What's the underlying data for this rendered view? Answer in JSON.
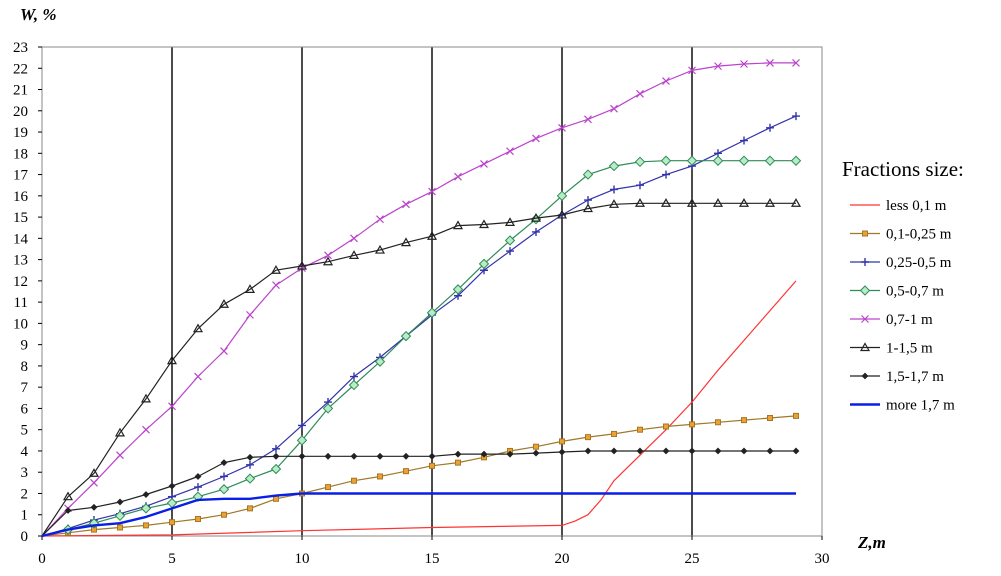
{
  "chart_data": {
    "type": "line",
    "title": "",
    "xlabel": "Z,m",
    "ylabel": "W, %",
    "xlim": [
      0,
      30
    ],
    "ylim": [
      0,
      23
    ],
    "x_ticks": [
      0,
      5,
      10,
      15,
      20,
      25,
      30
    ],
    "y_ticks": [
      0,
      1,
      2,
      3,
      4,
      5,
      6,
      7,
      8,
      9,
      10,
      11,
      12,
      13,
      14,
      15,
      16,
      17,
      18,
      19,
      20,
      21,
      22,
      23
    ],
    "grid": "vertical major lines",
    "legend_position": "right",
    "legend_title": "Fractions size:",
    "series": [
      {
        "name": "less 0,1 m",
        "color": "#ff3333",
        "marker": "none",
        "x": [
          0,
          5,
          10,
          15,
          20,
          20.5,
          21,
          21.5,
          22,
          23,
          24,
          25,
          26,
          27,
          28,
          29
        ],
        "y": [
          0,
          0.05,
          0.25,
          0.4,
          0.5,
          0.7,
          1.0,
          1.7,
          2.6,
          3.8,
          5.0,
          6.3,
          7.8,
          9.2,
          10.6,
          12.0
        ]
      },
      {
        "name": "0,1-0,25 m",
        "color": "#a07828",
        "marker": "square",
        "x": [
          0,
          1,
          2,
          3,
          4,
          5,
          6,
          7,
          8,
          9,
          10,
          11,
          12,
          13,
          14,
          15,
          16,
          17,
          18,
          19,
          20,
          21,
          22,
          23,
          24,
          25,
          26,
          27,
          28,
          29
        ],
        "y": [
          0,
          0.15,
          0.3,
          0.4,
          0.5,
          0.65,
          0.8,
          1.0,
          1.3,
          1.75,
          2.0,
          2.3,
          2.6,
          2.8,
          3.05,
          3.3,
          3.45,
          3.7,
          4.0,
          4.2,
          4.45,
          4.65,
          4.8,
          5.0,
          5.15,
          5.25,
          5.35,
          5.45,
          5.55,
          5.65
        ]
      },
      {
        "name": "0,25-0,5 m",
        "color": "#3333aa",
        "marker": "plus",
        "x": [
          0,
          1,
          2,
          3,
          4,
          5,
          6,
          7,
          8,
          9,
          10,
          11,
          12,
          13,
          14,
          15,
          16,
          17,
          18,
          19,
          20,
          21,
          22,
          23,
          24,
          25,
          26,
          27,
          28,
          29
        ],
        "y": [
          0,
          0.35,
          0.75,
          1.05,
          1.4,
          1.85,
          2.3,
          2.8,
          3.35,
          4.1,
          5.2,
          6.3,
          7.5,
          8.4,
          9.4,
          10.4,
          11.3,
          12.5,
          13.4,
          14.3,
          15.1,
          15.8,
          16.3,
          16.5,
          17.0,
          17.4,
          18.0,
          18.6,
          19.2,
          19.75
        ]
      },
      {
        "name": "0,5-0,7 m",
        "color": "#2e8b57",
        "marker": "diamond",
        "x": [
          0,
          1,
          2,
          3,
          4,
          5,
          6,
          7,
          8,
          9,
          10,
          11,
          12,
          13,
          14,
          15,
          16,
          17,
          18,
          19,
          20,
          21,
          22,
          23,
          24,
          25,
          26,
          27,
          28,
          29
        ],
        "y": [
          0,
          0.3,
          0.6,
          0.95,
          1.3,
          1.55,
          1.85,
          2.2,
          2.7,
          3.15,
          4.5,
          6.0,
          7.1,
          8.2,
          9.4,
          10.5,
          11.6,
          12.8,
          13.9,
          14.9,
          16.0,
          17.0,
          17.4,
          17.6,
          17.65,
          17.65,
          17.65,
          17.65,
          17.65,
          17.65
        ]
      },
      {
        "name": "0,7-1 m",
        "color": "#bb44cc",
        "marker": "x",
        "x": [
          0,
          1,
          2,
          3,
          4,
          5,
          6,
          7,
          8,
          9,
          10,
          11,
          12,
          13,
          14,
          15,
          16,
          17,
          18,
          19,
          20,
          21,
          22,
          23,
          24,
          25,
          26,
          27,
          28,
          29
        ],
        "y": [
          0,
          1.3,
          2.5,
          3.8,
          5.0,
          6.1,
          7.5,
          8.7,
          10.4,
          11.8,
          12.6,
          13.2,
          14.0,
          14.9,
          15.6,
          16.2,
          16.9,
          17.5,
          18.1,
          18.7,
          19.2,
          19.6,
          20.1,
          20.8,
          21.4,
          21.9,
          22.1,
          22.2,
          22.25,
          22.25
        ]
      },
      {
        "name": "1-1,5 m",
        "color": "#222222",
        "marker": "triangle",
        "x": [
          0,
          1,
          2,
          3,
          4,
          5,
          6,
          7,
          8,
          9,
          10,
          11,
          12,
          13,
          14,
          15,
          16,
          17,
          18,
          19,
          20,
          21,
          22,
          23,
          24,
          25,
          26,
          27,
          28,
          29
        ],
        "y": [
          0,
          1.85,
          2.95,
          4.85,
          6.45,
          8.25,
          9.75,
          10.9,
          11.6,
          12.5,
          12.7,
          12.9,
          13.2,
          13.45,
          13.8,
          14.1,
          14.6,
          14.65,
          14.75,
          14.95,
          15.1,
          15.4,
          15.6,
          15.65,
          15.65,
          15.65,
          15.65,
          15.65,
          15.65,
          15.65
        ]
      },
      {
        "name": "1,5-1,7 m",
        "color": "#222222",
        "marker": "small-diamond",
        "x": [
          0,
          1,
          2,
          3,
          4,
          5,
          6,
          7,
          8,
          9,
          10,
          11,
          12,
          13,
          14,
          15,
          16,
          17,
          18,
          19,
          20,
          21,
          22,
          23,
          24,
          25,
          26,
          27,
          28,
          29
        ],
        "y": [
          0,
          1.2,
          1.35,
          1.6,
          1.95,
          2.35,
          2.8,
          3.45,
          3.7,
          3.75,
          3.75,
          3.75,
          3.75,
          3.75,
          3.75,
          3.75,
          3.85,
          3.85,
          3.85,
          3.9,
          3.95,
          4.0,
          4.0,
          4.0,
          4.0,
          4.0,
          4.0,
          4.0,
          4.0,
          4.0
        ]
      },
      {
        "name": "more 1,7 m",
        "color": "#0a1fe6",
        "marker": "none",
        "x": [
          0,
          1,
          2,
          3,
          4,
          5,
          6,
          7,
          8,
          9,
          10,
          15,
          20,
          25,
          29
        ],
        "y": [
          0,
          0.3,
          0.5,
          0.6,
          0.9,
          1.3,
          1.7,
          1.75,
          1.75,
          1.9,
          2.0,
          2.0,
          2.0,
          2.0,
          2.0
        ]
      }
    ]
  }
}
